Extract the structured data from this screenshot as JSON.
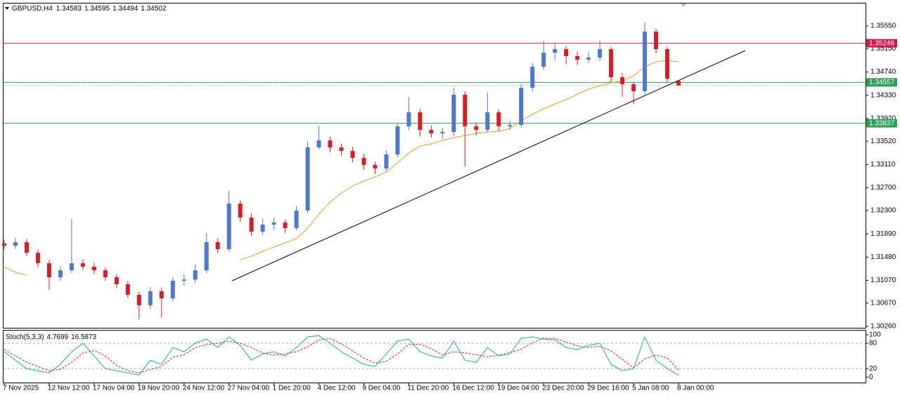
{
  "chart_data": [
    {
      "type": "candlestick",
      "title": "GBPUSD,H4",
      "categories": [
        "7 Nov 2025",
        null,
        null,
        null,
        "12 Nov 12:00",
        null,
        null,
        null,
        "17 Nov 04:00",
        null,
        null,
        null,
        "19 Nov 20:00",
        null,
        null,
        null,
        "24 Nov 12:00",
        null,
        null,
        null,
        "27 Nov 04:00",
        null,
        null,
        null,
        "1 Dec 20:00",
        null,
        null,
        null,
        "4 Dec 12:00",
        null,
        null,
        null,
        "9 Dec 04:00",
        null,
        null,
        null,
        "11 Dec 20:00",
        null,
        null,
        null,
        "16 Dec 12:00",
        null,
        null,
        null,
        "19 Dec 04:00",
        null,
        null,
        null,
        "23 Dec 20:00",
        null,
        null,
        null,
        "29 Dec 16:00",
        null,
        null,
        null,
        "5 Jan 08:00",
        null,
        null,
        null,
        "8 Jan 00:00"
      ],
      "open": [
        1.3172,
        1.31681,
        1.31743,
        1.31558,
        1.31372,
        1.31125,
        1.31249,
        1.31372,
        1.31311,
        1.31249,
        1.31125,
        1.31002,
        1.30816,
        1.30631,
        1.30878,
        1.30754,
        1.31063,
        1.31085,
        1.31249,
        1.31743,
        1.3162,
        1.32423,
        1.32176,
        1.31929,
        1.32052,
        1.3209,
        1.3199,
        1.32299,
        1.33412,
        1.33535,
        1.33412,
        1.3335,
        1.33226,
        1.33103,
        1.33041,
        1.33288,
        1.33783,
        1.3403,
        1.33721,
        1.33659,
        1.33684,
        1.34339,
        1.33783,
        1.33721,
        1.3403,
        1.33783,
        1.33807,
        1.34462,
        1.34833,
        1.3508,
        1.35142,
        1.35019,
        1.34957,
        1.34994,
        1.35142,
        1.34648,
        1.34524,
        1.34401,
        1.35451,
        1.35142,
        1.34583
      ],
      "high": [
        1.3179,
        1.3182,
        1.318,
        1.3161,
        1.3143,
        1.3132,
        1.3215,
        1.3144,
        1.3138,
        1.313,
        1.3118,
        1.3106,
        1.3087,
        1.3095,
        1.3094,
        1.3113,
        1.3118,
        1.3135,
        1.319,
        1.3181,
        1.3265,
        1.3248,
        1.3225,
        1.3215,
        1.3218,
        1.3214,
        1.3238,
        1.3352,
        1.3379,
        1.336,
        1.3348,
        1.3342,
        1.333,
        1.3316,
        1.3336,
        1.3385,
        1.343,
        1.3409,
        1.338,
        1.3376,
        1.3446,
        1.344,
        1.3385,
        1.3438,
        1.3408,
        1.3388,
        1.3453,
        1.349,
        1.3529,
        1.3526,
        1.352,
        1.351,
        1.3508,
        1.3529,
        1.3518,
        1.3472,
        1.3456,
        1.3561,
        1.355,
        1.3518,
        1.34595
      ],
      "low": [
        1.3161,
        1.3162,
        1.315,
        1.313,
        1.309,
        1.3106,
        1.312,
        1.3125,
        1.3118,
        1.3106,
        1.3094,
        1.3076,
        1.30383,
        1.3056,
        1.3042,
        1.307,
        1.3098,
        1.3102,
        1.312,
        1.3155,
        1.3158,
        1.321,
        1.3185,
        1.3188,
        1.3196,
        1.319,
        1.3195,
        1.3225,
        1.3338,
        1.3333,
        1.3327,
        1.3315,
        1.3302,
        1.3294,
        1.3299,
        1.3324,
        1.3372,
        1.336,
        1.3358,
        1.3356,
        1.3362,
        1.33078,
        1.3362,
        1.3368,
        1.337,
        1.3372,
        1.3376,
        1.344,
        1.3478,
        1.3495,
        1.3488,
        1.3486,
        1.349,
        1.3494,
        1.3456,
        1.343,
        1.3418,
        1.3435,
        1.3506,
        1.3456,
        1.34494
      ],
      "close": [
        1.31681,
        1.31743,
        1.31558,
        1.31372,
        1.31125,
        1.31249,
        1.31372,
        1.31311,
        1.31249,
        1.31125,
        1.31002,
        1.30816,
        1.30631,
        1.30878,
        1.30754,
        1.31063,
        1.31085,
        1.31249,
        1.31743,
        1.3162,
        1.32423,
        1.32176,
        1.31929,
        1.32052,
        1.3209,
        1.3199,
        1.32299,
        1.33412,
        1.33535,
        1.33412,
        1.3335,
        1.33226,
        1.33103,
        1.33041,
        1.33288,
        1.33783,
        1.3403,
        1.33721,
        1.33659,
        1.33684,
        1.34339,
        1.33783,
        1.33721,
        1.3403,
        1.33783,
        1.33807,
        1.34462,
        1.34833,
        1.3508,
        1.35142,
        1.35019,
        1.34957,
        1.34994,
        1.35142,
        1.34648,
        1.34524,
        1.34401,
        1.35451,
        1.35142,
        1.3462,
        1.34502
      ],
      "up_color": "#4f78c8",
      "down_color": "#d51f26",
      "series": [
        {
          "color": "#e0a030",
          "values": [
            1.31311,
            1.31212,
            1.31162,
            null,
            null,
            null,
            null,
            null,
            null,
            null,
            null,
            null,
            null,
            null,
            null,
            null,
            null,
            null,
            null,
            null,
            null,
            1.31434,
            1.31496,
            1.31582,
            1.31657,
            1.31731,
            1.31805,
            1.3199,
            1.32238,
            1.32448,
            1.32608,
            1.32732,
            1.32818,
            1.32893,
            1.32979,
            1.3314,
            1.33313,
            1.33436,
            1.33474,
            1.33535,
            1.33585,
            1.33622,
            1.33659,
            1.33684,
            1.33696,
            1.33745,
            1.33881,
            1.33993,
            1.34092,
            1.34178,
            1.34252,
            1.34351,
            1.34438,
            1.34499,
            1.34549,
            1.34586,
            1.34672,
            1.34833,
            1.3492,
            1.34944,
            1.3492
          ]
        }
      ],
      "levels": [
        {
          "value": 1.35246,
          "color": "#d0164a"
        },
        {
          "value": 1.34557,
          "color": "#2e9e5a"
        },
        {
          "value": 1.33837,
          "color": "#2e9e5a"
        }
      ],
      "ylim": [
        1.30235,
        1.35946
      ],
      "yticks": [
        {
          "value": 1.3555,
          "label": "1.35550"
        },
        {
          "value": 1.3515,
          "label": "1.35150"
        },
        {
          "value": 1.3474,
          "label": "1.34740"
        },
        {
          "value": 1.3433,
          "label": "1.34330"
        },
        {
          "value": 1.3392,
          "label": "1.33920"
        },
        {
          "value": 1.3352,
          "label": "1.33520"
        },
        {
          "value": 1.3311,
          "label": "1.33110"
        },
        {
          "value": 1.327,
          "label": "1.32700"
        },
        {
          "value": 1.323,
          "label": "1.32300"
        },
        {
          "value": 1.3189,
          "label": "1.31890"
        },
        {
          "value": 1.3148,
          "label": "1.31480"
        },
        {
          "value": 1.3107,
          "label": "1.31070"
        },
        {
          "value": 1.3067,
          "label": "1.30670"
        },
        {
          "value": 1.3026,
          "label": "1.30260"
        }
      ]
    },
    {
      "type": "line",
      "title": "Stoch(5,3,3)",
      "series": [
        {
          "color": "#1fa9a0",
          "dashed": false,
          "values": [
            60,
            40,
            20,
            15,
            10,
            30,
            60,
            80,
            50,
            20,
            15,
            10,
            5,
            40,
            30,
            70,
            60,
            80,
            90,
            70,
            95,
            75,
            40,
            55,
            60,
            50,
            70,
            95,
            98,
            80,
            60,
            45,
            30,
            25,
            55,
            85,
            90,
            60,
            50,
            45,
            85,
            40,
            35,
            70,
            50,
            55,
            92,
            95,
            90,
            88,
            70,
            65,
            75,
            80,
            30,
            15,
            20,
            95,
            40,
            20,
            4.7699
          ]
        },
        {
          "color": "#d51f26",
          "dashed": true,
          "values": [
            65,
            50,
            35,
            25,
            15,
            18,
            35,
            57,
            63,
            50,
            28,
            15,
            10,
            18,
            25,
            47,
            53,
            70,
            77,
            80,
            85,
            80,
            70,
            57,
            52,
            55,
            60,
            72,
            88,
            91,
            79,
            62,
            45,
            33,
            37,
            55,
            77,
            78,
            67,
            52,
            60,
            57,
            53,
            48,
            52,
            58,
            66,
            81,
            92,
            91,
            83,
            74,
            70,
            73,
            62,
            42,
            22,
            43,
            52,
            45,
            16.5873
          ]
        }
      ],
      "ylim": [
        -13,
        110
      ],
      "yticks": [
        100,
        80,
        20,
        0
      ]
    }
  ]
}
